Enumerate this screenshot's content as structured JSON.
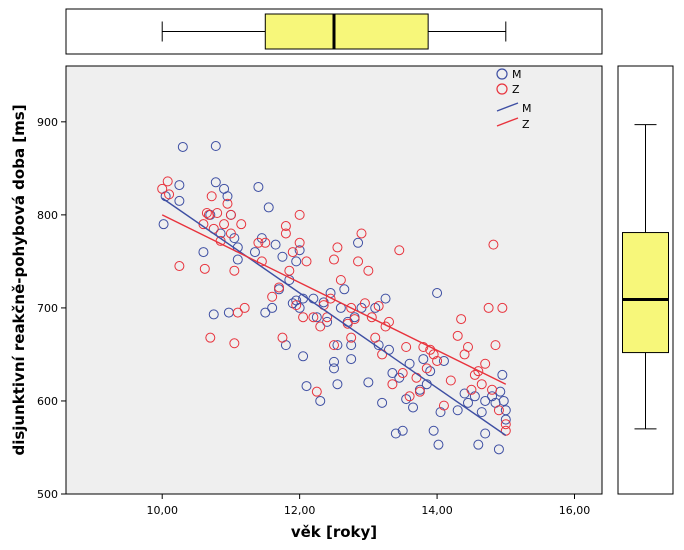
{
  "chart_data": {
    "type": "scatter",
    "xlabel": "věk [roky]",
    "ylabel": "disjunktivní reakčně-pohybová doba [ms]",
    "xlim": [
      8.6,
      16.4
    ],
    "ylim": [
      500,
      960
    ],
    "x_ticks": [
      10,
      12,
      14,
      16
    ],
    "x_tick_labels": [
      "10,00",
      "12,00",
      "14,00",
      "16,00"
    ],
    "y_ticks": [
      500,
      600,
      700,
      800,
      900
    ],
    "y_tick_labels": [
      "500",
      "600",
      "700",
      "800",
      "900"
    ],
    "grid": false,
    "background": "#efefef",
    "legend": {
      "placement": "top-right",
      "entries": [
        {
          "label": "M",
          "kind": "marker",
          "color": "#3e4fa3"
        },
        {
          "label": "Z",
          "kind": "marker",
          "color": "#e8333d"
        },
        {
          "label": "M",
          "kind": "line",
          "color": "#3e4fa3"
        },
        {
          "label": "Z",
          "kind": "line",
          "color": "#e8333d"
        }
      ]
    },
    "series": [
      {
        "name": "M",
        "color": "#3e4fa3",
        "points": [
          [
            10.02,
            790
          ],
          [
            10.05,
            820
          ],
          [
            10.25,
            832
          ],
          [
            10.25,
            815
          ],
          [
            10.3,
            873
          ],
          [
            10.6,
            760
          ],
          [
            10.7,
            800
          ],
          [
            10.75,
            693
          ],
          [
            10.78,
            835
          ],
          [
            10.78,
            874
          ],
          [
            10.85,
            780
          ],
          [
            10.9,
            828
          ],
          [
            10.95,
            820
          ],
          [
            10.97,
            695
          ],
          [
            11.0,
            800
          ],
          [
            11.05,
            775
          ],
          [
            11.1,
            765
          ],
          [
            11.1,
            752
          ],
          [
            11.35,
            760
          ],
          [
            11.4,
            830
          ],
          [
            11.45,
            775
          ],
          [
            11.5,
            695
          ],
          [
            11.55,
            808
          ],
          [
            11.6,
            700
          ],
          [
            11.65,
            768
          ],
          [
            11.7,
            720
          ],
          [
            11.75,
            755
          ],
          [
            11.8,
            660
          ],
          [
            11.85,
            730
          ],
          [
            11.9,
            705
          ],
          [
            11.95,
            708
          ],
          [
            11.95,
            750
          ],
          [
            12.0,
            762
          ],
          [
            12.0,
            700
          ],
          [
            12.05,
            648
          ],
          [
            12.05,
            710
          ],
          [
            12.1,
            616
          ],
          [
            12.2,
            710
          ],
          [
            12.25,
            690
          ],
          [
            12.3,
            600
          ],
          [
            12.35,
            706
          ],
          [
            12.4,
            685
          ],
          [
            12.45,
            716
          ],
          [
            12.5,
            642
          ],
          [
            12.5,
            635
          ],
          [
            12.55,
            618
          ],
          [
            12.55,
            660
          ],
          [
            12.6,
            700
          ],
          [
            12.65,
            720
          ],
          [
            12.7,
            685
          ],
          [
            12.75,
            660
          ],
          [
            12.75,
            645
          ],
          [
            12.8,
            690
          ],
          [
            12.85,
            770
          ],
          [
            12.9,
            700
          ],
          [
            13.0,
            620
          ],
          [
            13.1,
            700
          ],
          [
            13.15,
            660
          ],
          [
            13.2,
            598
          ],
          [
            13.25,
            710
          ],
          [
            13.3,
            655
          ],
          [
            13.35,
            630
          ],
          [
            13.4,
            565
          ],
          [
            13.45,
            625
          ],
          [
            13.5,
            568
          ],
          [
            13.55,
            602
          ],
          [
            13.6,
            640
          ],
          [
            13.65,
            593
          ],
          [
            13.75,
            612
          ],
          [
            13.8,
            645
          ],
          [
            13.85,
            618
          ],
          [
            13.9,
            632
          ],
          [
            13.95,
            568
          ],
          [
            14.0,
            716
          ],
          [
            14.02,
            553
          ],
          [
            14.05,
            588
          ],
          [
            14.1,
            643
          ],
          [
            14.3,
            590
          ],
          [
            14.4,
            608
          ],
          [
            14.45,
            598
          ],
          [
            14.55,
            605
          ],
          [
            14.6,
            553
          ],
          [
            14.65,
            588
          ],
          [
            14.7,
            600
          ],
          [
            14.7,
            565
          ],
          [
            14.8,
            605
          ],
          [
            14.85,
            598
          ],
          [
            14.9,
            548
          ],
          [
            14.92,
            610
          ],
          [
            14.95,
            628
          ],
          [
            14.97,
            600
          ],
          [
            15.0,
            590
          ],
          [
            15.0,
            580
          ]
        ],
        "fit": {
          "x": [
            10.0,
            15.0
          ],
          "y": [
            818,
            563
          ]
        }
      },
      {
        "name": "Z",
        "color": "#e8333d",
        "points": [
          [
            10.0,
            828
          ],
          [
            10.08,
            836
          ],
          [
            10.1,
            822
          ],
          [
            10.25,
            745
          ],
          [
            10.6,
            790
          ],
          [
            10.62,
            742
          ],
          [
            10.65,
            802
          ],
          [
            10.68,
            800
          ],
          [
            10.7,
            668
          ],
          [
            10.72,
            820
          ],
          [
            10.75,
            785
          ],
          [
            10.8,
            802
          ],
          [
            10.85,
            772
          ],
          [
            10.9,
            790
          ],
          [
            10.95,
            812
          ],
          [
            11.0,
            800
          ],
          [
            11.0,
            780
          ],
          [
            11.05,
            662
          ],
          [
            11.05,
            740
          ],
          [
            11.1,
            695
          ],
          [
            11.15,
            790
          ],
          [
            11.2,
            700
          ],
          [
            11.4,
            770
          ],
          [
            11.45,
            750
          ],
          [
            11.5,
            770
          ],
          [
            11.6,
            712
          ],
          [
            11.7,
            722
          ],
          [
            11.75,
            668
          ],
          [
            11.8,
            780
          ],
          [
            11.8,
            788
          ],
          [
            11.85,
            740
          ],
          [
            11.9,
            760
          ],
          [
            11.95,
            703
          ],
          [
            12.0,
            800
          ],
          [
            12.0,
            770
          ],
          [
            12.05,
            690
          ],
          [
            12.1,
            750
          ],
          [
            12.2,
            690
          ],
          [
            12.25,
            610
          ],
          [
            12.3,
            680
          ],
          [
            12.35,
            703
          ],
          [
            12.4,
            690
          ],
          [
            12.45,
            710
          ],
          [
            12.5,
            752
          ],
          [
            12.5,
            660
          ],
          [
            12.55,
            765
          ],
          [
            12.6,
            730
          ],
          [
            12.7,
            683
          ],
          [
            12.75,
            668
          ],
          [
            12.75,
            700
          ],
          [
            12.8,
            688
          ],
          [
            12.85,
            750
          ],
          [
            12.9,
            780
          ],
          [
            12.95,
            705
          ],
          [
            13.0,
            740
          ],
          [
            13.05,
            690
          ],
          [
            13.1,
            668
          ],
          [
            13.15,
            702
          ],
          [
            13.2,
            650
          ],
          [
            13.25,
            680
          ],
          [
            13.3,
            685
          ],
          [
            13.35,
            618
          ],
          [
            13.45,
            762
          ],
          [
            13.5,
            630
          ],
          [
            13.55,
            658
          ],
          [
            13.6,
            605
          ],
          [
            13.7,
            625
          ],
          [
            13.75,
            610
          ],
          [
            13.8,
            658
          ],
          [
            13.85,
            635
          ],
          [
            13.9,
            655
          ],
          [
            13.95,
            650
          ],
          [
            14.0,
            643
          ],
          [
            14.1,
            595
          ],
          [
            14.2,
            622
          ],
          [
            14.3,
            670
          ],
          [
            14.35,
            688
          ],
          [
            14.4,
            650
          ],
          [
            14.45,
            658
          ],
          [
            14.5,
            612
          ],
          [
            14.55,
            628
          ],
          [
            14.6,
            632
          ],
          [
            14.65,
            618
          ],
          [
            14.7,
            640
          ],
          [
            14.75,
            700
          ],
          [
            14.8,
            612
          ],
          [
            14.82,
            768
          ],
          [
            14.85,
            660
          ],
          [
            14.9,
            590
          ],
          [
            14.95,
            700
          ],
          [
            15.0,
            568
          ],
          [
            15.0,
            575
          ]
        ],
        "fit": {
          "x": [
            10.0,
            15.0
          ],
          "y": [
            800,
            618
          ]
        }
      }
    ],
    "marginal_boxplots": {
      "x": {
        "min": 10.0,
        "q1": 11.5,
        "median": 12.5,
        "q3": 13.87,
        "max": 15.0
      },
      "y": {
        "min": 570,
        "q1": 652,
        "median": 709,
        "q3": 781,
        "max": 897
      },
      "fill": "#f7f77a"
    }
  }
}
